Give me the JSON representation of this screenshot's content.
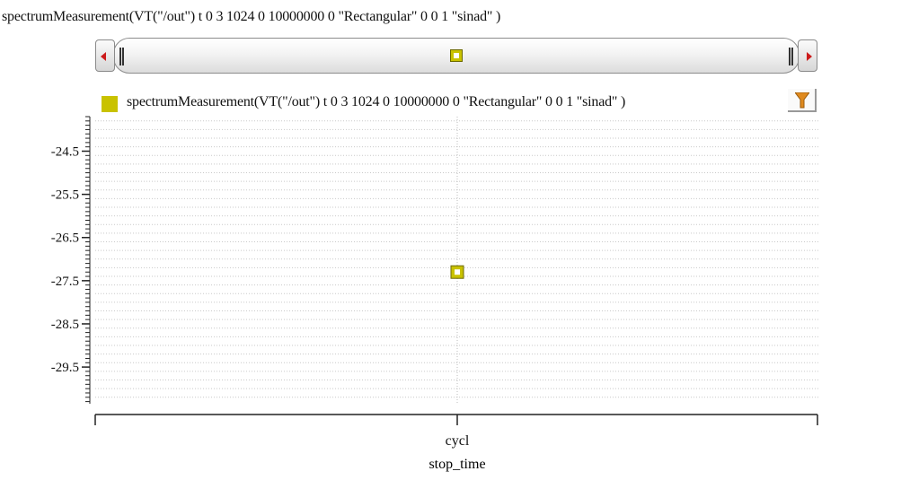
{
  "window": {
    "title": "spectrumMeasurement(VT(\"/out\") t 0 3 1024 0 10000000 0 \"Rectangular\" 0 0 1 \"sinad\" )"
  },
  "scroller": {
    "left_arrow_icon": "red-left-arrow",
    "right_arrow_icon": "red-right-arrow"
  },
  "legend": {
    "label": "spectrumMeasurement(VT(\"/out\") t 0 3 1024 0 10000000 0 \"Rectangular\" 0 0 1 \"sinad\" )",
    "color": "#c9c200"
  },
  "toolbar": {
    "filter_icon": "funnel-icon",
    "filter_color": "#e08a1e"
  },
  "chart_data": {
    "type": "scatter",
    "xlabel": "stop_time",
    "x_categories": [
      "cycl"
    ],
    "yticks": [
      -24.5,
      -25.5,
      -26.5,
      -27.5,
      -28.5,
      -29.5
    ],
    "ylim": [
      -30.35,
      -23.7
    ],
    "grid": true,
    "series": [
      {
        "color": "#c9c200",
        "points": [
          {
            "x": "cycl",
            "y": -27.3
          }
        ]
      }
    ]
  }
}
